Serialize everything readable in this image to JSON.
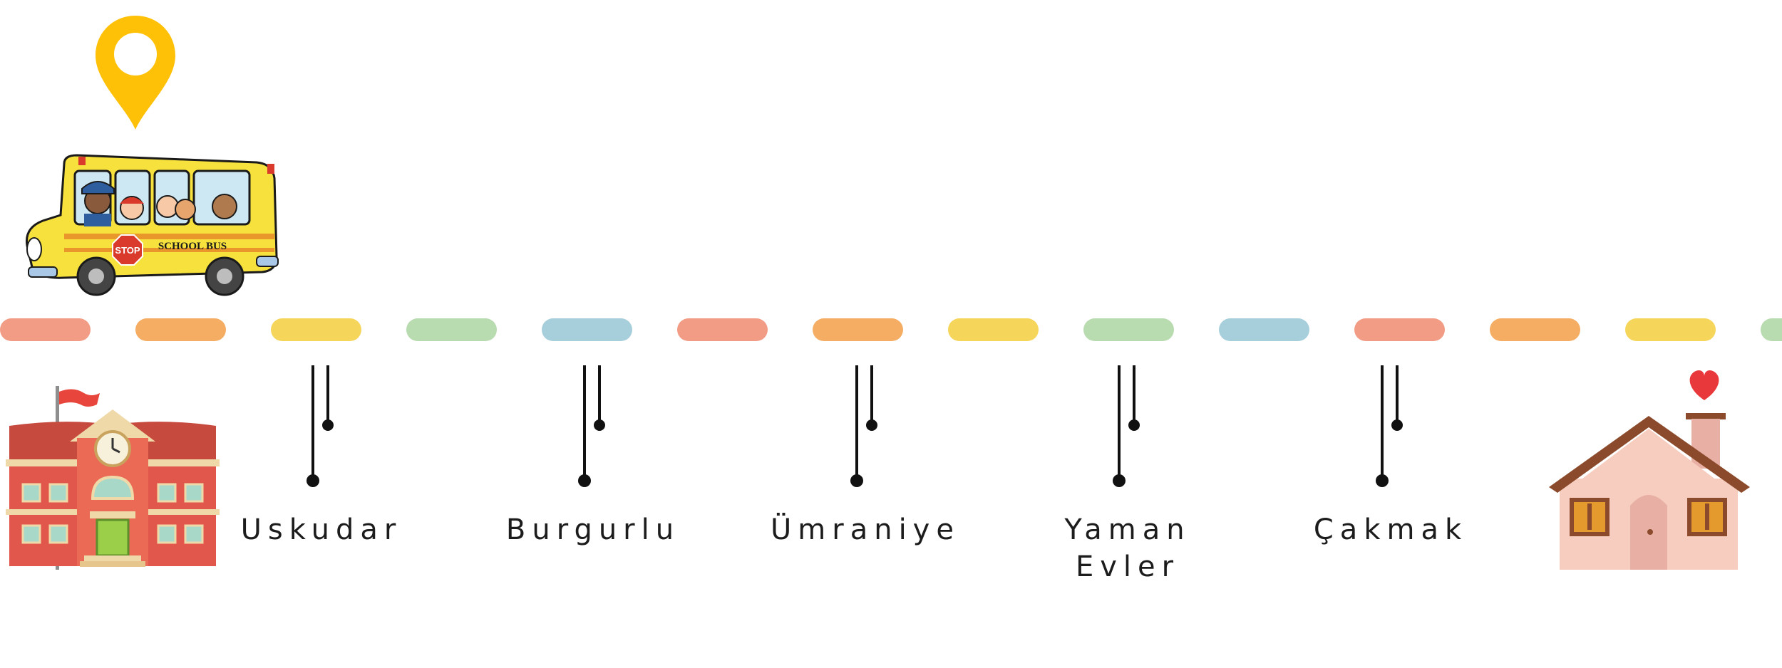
{
  "route": {
    "stops": [
      {
        "label": "Uskudar"
      },
      {
        "label": "Burgurlu"
      },
      {
        "label": "Ümraniye"
      },
      {
        "label": "Yaman\nEvler"
      },
      {
        "label": "Çakmak"
      }
    ],
    "road_colors": [
      "#f29c86",
      "#f5ad63",
      "#f5d65a",
      "#b8dbb0",
      "#a6cfdb"
    ]
  },
  "bus": {
    "sign_text": "SCHOOL BUS",
    "stop_sign_text": "STOP"
  },
  "icons": {
    "marker": "location-pin-icon",
    "school": "school-building-icon",
    "home": "house-heart-icon",
    "vehicle": "school-bus-icon"
  },
  "colors": {
    "pin": "#FFC107",
    "heart": "#E8383B",
    "house_wall": "#F6CDBE",
    "roof": "#8B4A2B",
    "school_brick": "#E2574C"
  }
}
